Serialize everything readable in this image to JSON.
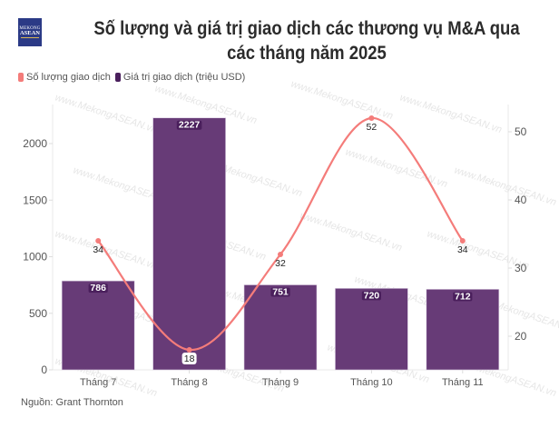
{
  "logo": {
    "line1": "MEKONG",
    "line2": "ASEAN"
  },
  "title": "Số lượng và giá trị giao dịch các thương vụ M&A qua các tháng năm 2025",
  "source": "Nguồn: Grant Thornton",
  "watermark": "www.MekongASEAN.vn",
  "colors": {
    "bar": "#673b77",
    "line": "#f47c7a",
    "bar_label_bg": "#4a1f5c"
  },
  "chart_data": {
    "type": "bar",
    "title": "Số lượng và giá trị giao dịch các thương vụ M&A qua các tháng năm 2025",
    "categories": [
      "Tháng 7",
      "Tháng 8",
      "Tháng 9",
      "Tháng 10",
      "Tháng 11"
    ],
    "series": [
      {
        "name": "Số lượng giao dịch",
        "type": "line",
        "axis": "right",
        "values": [
          34,
          18,
          32,
          52,
          34
        ]
      },
      {
        "name": "Giá trị giao dịch (triệu USD)",
        "type": "bar",
        "axis": "left",
        "values": [
          786,
          2227,
          751,
          720,
          712
        ]
      }
    ],
    "left_axis": {
      "ticks": [
        0,
        500,
        1000,
        1500,
        2000
      ],
      "range": [
        0,
        2400
      ]
    },
    "right_axis": {
      "ticks": [
        20,
        30,
        40,
        50
      ],
      "range": [
        15.5,
        54
      ]
    },
    "legend": {
      "placement": "top-left",
      "entries": [
        "Số lượng giao dịch",
        "Giá trị giao dịch (triệu USD)"
      ]
    },
    "grid": false
  }
}
